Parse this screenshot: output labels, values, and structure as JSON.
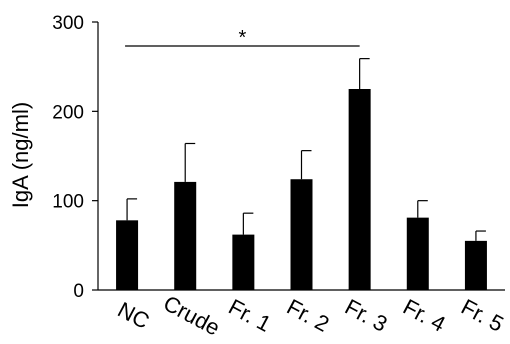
{
  "chart_data": {
    "type": "bar",
    "categories": [
      "NC",
      "Crude",
      "Fr. 1",
      "Fr. 2",
      "Fr. 3",
      "Fr. 4",
      "Fr. 5"
    ],
    "values": [
      78,
      121,
      62,
      124,
      225,
      81,
      55
    ],
    "error_plus": [
      24,
      43,
      24,
      32,
      34,
      19,
      11
    ],
    "ylabel": "IgA (ng/ml)",
    "xlabel": "",
    "ylim": [
      0,
      300
    ],
    "yticks": [
      "0",
      "100",
      "200",
      "300"
    ],
    "bar_color": "#000000",
    "grid": false,
    "legend": "none",
    "significance": {
      "from": "NC",
      "to": "Fr. 3",
      "label": "*"
    }
  }
}
